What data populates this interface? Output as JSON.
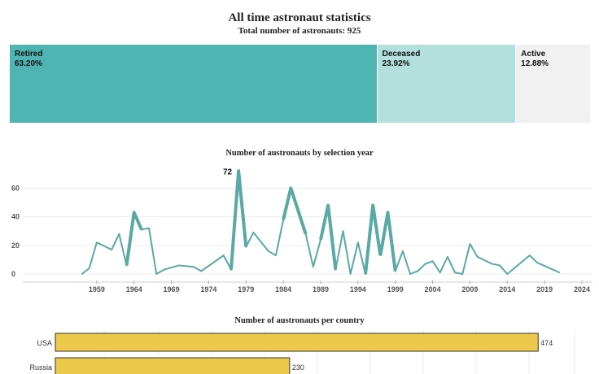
{
  "colors": {
    "retired": "#4fb5b3",
    "deceased": "#b3dfdd",
    "active": "#f1f1f1",
    "line": "#5aa9a4",
    "bar": "#ecc94b",
    "bar_border": "#333333"
  },
  "chart_data": [
    {
      "type": "treemap",
      "title": "All time astronaut statistics",
      "subtitle": "Total number of astronauts: 925",
      "cells": [
        {
          "label": "Retired",
          "value": "63.20%",
          "pct": 63.2
        },
        {
          "label": "Deceased",
          "value": "23.92%",
          "pct": 23.92
        },
        {
          "label": "Active",
          "value": "12.88%",
          "pct": 12.88
        }
      ]
    },
    {
      "type": "line",
      "title": "Number of austronauts by selection year",
      "xlim": [
        1954,
        2024
      ],
      "ylim": [
        0,
        75
      ],
      "xticks": [
        1959,
        1964,
        1969,
        1974,
        1979,
        1984,
        1989,
        1994,
        1999,
        2004,
        2009,
        2014,
        2019,
        2024
      ],
      "yticks": [
        0,
        20,
        40,
        60
      ],
      "peak_label": "72",
      "peak": {
        "x": 1978,
        "y": 72
      },
      "x": [
        1957,
        1958,
        1959,
        1961,
        1962,
        1963,
        1964,
        1965,
        1966,
        1967,
        1968,
        1970,
        1972,
        1973,
        1976,
        1977,
        1978,
        1979,
        1980,
        1982,
        1983,
        1984,
        1985,
        1987,
        1988,
        1989,
        1990,
        1991,
        1992,
        1993,
        1994,
        1995,
        1996,
        1997,
        1998,
        1999,
        2000,
        2001,
        2002,
        2003,
        2004,
        2005,
        2006,
        2007,
        2008,
        2009,
        2010,
        2012,
        2013,
        2014,
        2017,
        2018,
        2021
      ],
      "y": [
        0,
        4,
        22,
        17,
        28,
        6,
        43,
        31,
        32,
        0,
        3,
        6,
        5,
        2,
        13,
        3,
        72,
        19,
        29,
        16,
        13,
        38,
        60,
        28,
        5,
        24,
        48,
        3,
        30,
        0,
        22,
        0,
        48,
        13,
        43,
        2,
        16,
        0,
        2,
        7,
        9,
        1,
        12,
        1,
        0,
        21,
        12,
        7,
        6,
        0,
        13,
        8,
        1
      ]
    },
    {
      "type": "bar",
      "orientation": "horizontal",
      "title": "Number of austronauts per country",
      "categories": [
        "USA",
        "Russia"
      ],
      "values": [
        474,
        230
      ],
      "xlim": [
        0,
        485
      ]
    }
  ]
}
